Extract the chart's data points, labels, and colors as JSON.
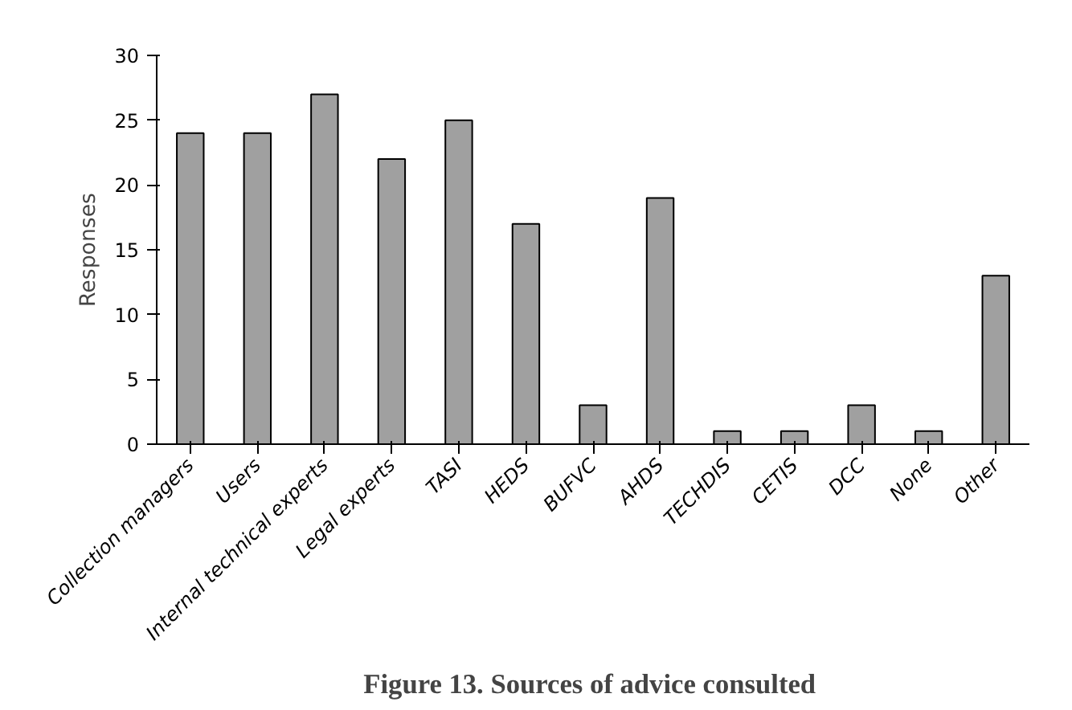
{
  "chart_data": {
    "type": "bar",
    "title": "Figure 13.  Sources of advice consulted",
    "ylabel": "Responses",
    "categories": [
      "Collection managers",
      "Users",
      "Internal technical experts",
      "Legal experts",
      "TASI",
      "HEDS",
      "BUFVC",
      "AHDS",
      "TECHDIS",
      "CETIS",
      "DCC",
      "None",
      "Other"
    ],
    "values": [
      24,
      24,
      27,
      22,
      25,
      17,
      3,
      19,
      1,
      1,
      3,
      1,
      13
    ],
    "color": "#a0a0a0",
    "ylim": [
      0,
      30
    ],
    "yticks": [
      0,
      5,
      10,
      15,
      20,
      25,
      30
    ],
    "grid": false
  }
}
